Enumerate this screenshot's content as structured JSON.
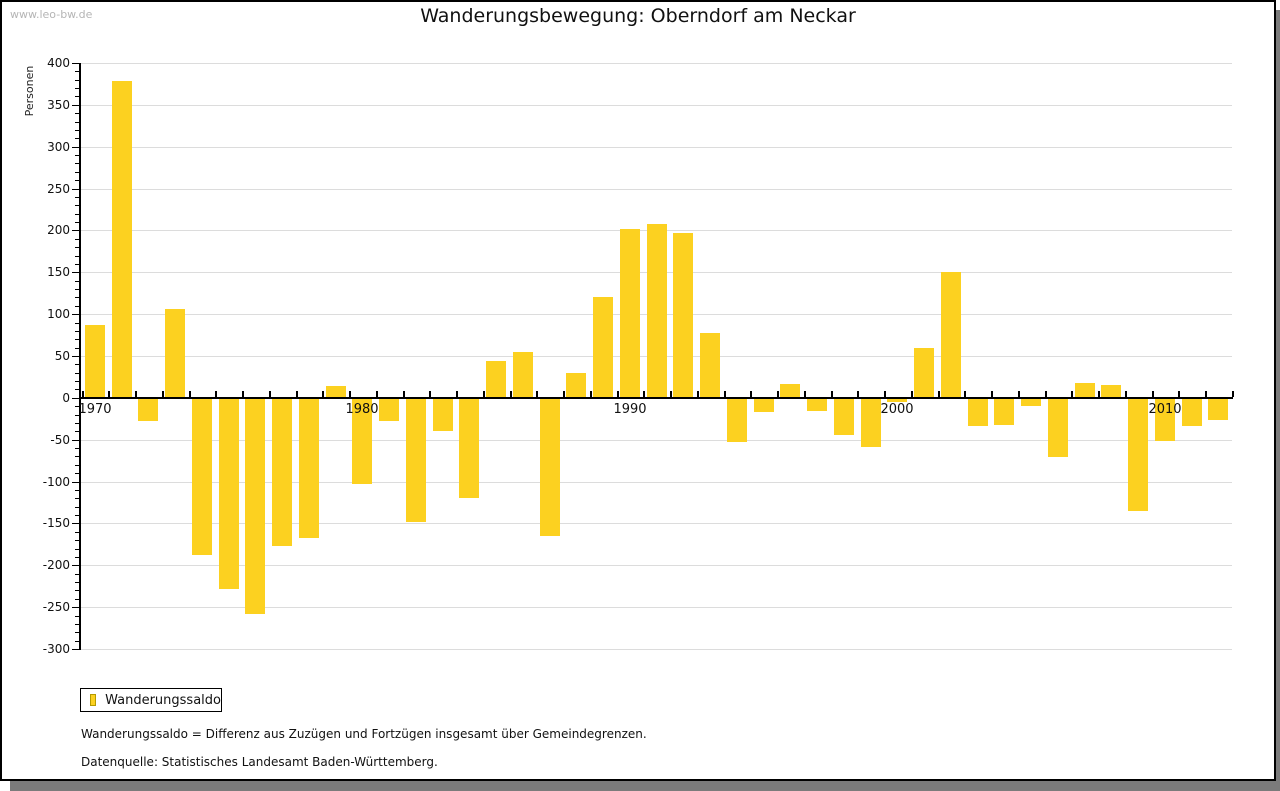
{
  "watermark": "www.leo-bw.de",
  "title": "Wanderungsbewegung: Oberndorf am Neckar",
  "legend": {
    "label": "Wanderungssaldo"
  },
  "footnotes": [
    "Wanderungssaldo = Differenz aus Zuzügen und Fortzügen insgesamt über Gemeindegrenzen.",
    "Datenquelle: Statistisches Landesamt Baden-Württemberg."
  ],
  "colors": {
    "bar": "#FCD120",
    "legend_swatch_border": "#B59A00",
    "grid": "#DCDCDC",
    "axis": "#000000",
    "watermark": "#B5B5B5",
    "shadow": "#7B7B7B"
  },
  "chart_data": {
    "type": "bar",
    "title": "Wanderungsbewegung: Oberndorf am Neckar",
    "ylabel": "Personen",
    "xlabel": "",
    "ylim": [
      -300,
      400
    ],
    "y_tick_step": 50,
    "y_minor_tick_step": 10,
    "grid": true,
    "legend_position": "bottom-left",
    "series_name": "Wanderungssaldo",
    "x_axis_labels": [
      1970,
      1980,
      1990,
      2000,
      2010
    ],
    "years": [
      1970,
      1971,
      1972,
      1973,
      1974,
      1975,
      1976,
      1977,
      1978,
      1979,
      1980,
      1981,
      1982,
      1983,
      1984,
      1985,
      1986,
      1987,
      1988,
      1989,
      1990,
      1991,
      1992,
      1993,
      1994,
      1995,
      1996,
      1997,
      1998,
      1999,
      2000,
      2001,
      2002,
      2003,
      2004,
      2005,
      2006,
      2007,
      2008,
      2009,
      2010,
      2011,
      2012
    ],
    "values": [
      87,
      378,
      -28,
      106,
      -187,
      -228,
      -258,
      -177,
      -167,
      14,
      -103,
      -27,
      -148,
      -39,
      -120,
      44,
      55,
      -165,
      30,
      120,
      202,
      208,
      197,
      78,
      -52,
      -17,
      16,
      -16,
      -44,
      -58,
      -5,
      60,
      150,
      -33,
      -32,
      -9,
      -71,
      18,
      15,
      -135,
      -51,
      -33,
      -26
    ]
  }
}
